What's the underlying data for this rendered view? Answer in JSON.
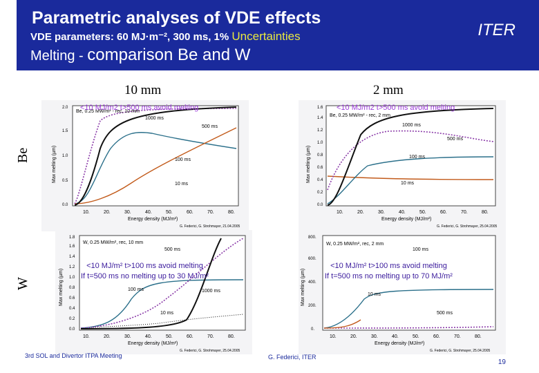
{
  "header": {
    "title": "Parametric analyses of VDE effects",
    "subtitle_main": "VDE parameters: 60 MJ·m⁻², 300 ms, 1%",
    "subtitle_unc": "Uncertainties",
    "subtitle2_small": "Melting -",
    "subtitle2_big": "comparison Be and W",
    "logo": "ITER"
  },
  "columns": [
    "10 mm",
    "2 mm"
  ],
  "rows": [
    "Be",
    "W"
  ],
  "panels": [
    {
      "legend": "Be, 0.25 MW/m² - rec, 10 mm",
      "note": "<10 MJ/m2 t>500 ms avoid melting",
      "credit": "G. Federici, G. Strohmayer, 21.04.2005",
      "xlabel": "Energy density (MJ/m²)",
      "ylabel": "Max melting (µm)",
      "ticks_x": [
        "10.",
        "20.",
        "30.",
        "40.",
        "50.",
        "60.",
        "70.",
        "80."
      ],
      "ticks_y": [
        "0.0",
        "0.5",
        "1.0",
        "1.5",
        "2.0"
      ],
      "curve_labels": [
        "1000 ms",
        "500 ms",
        "100 ms",
        "10 ms"
      ]
    },
    {
      "legend": "Be, 0.25 MW/m² - rec, 2 mm",
      "note": "<10 MJ/m2 t>500 ms avoid melting",
      "credit": "G. Federici, G. Strohmayer, 25.04.2005",
      "xlabel": "Energy density (MJ/m²)",
      "ylabel": "Max melting (µm)",
      "ticks_x": [
        "10.",
        "20.",
        "30.",
        "40.",
        "50.",
        "60.",
        "70.",
        "80."
      ],
      "ticks_y": [
        "0.0",
        "0.2",
        "0.4",
        "0.6",
        "0.8",
        "1.0",
        "1.2",
        "1.4",
        "1.6"
      ],
      "curve_labels": [
        "1000 ms",
        "500 ms",
        "100 ms",
        "10 ms"
      ]
    },
    {
      "legend": "W, 0.25 MW/m², rec, 10 mm",
      "note_line1": "<10 MJ/m² t>100 ms avoid melting",
      "note_line2": "If t=500 ms no melting up to 30 MJ/m²",
      "credit": "G. Federici, G. Strohmayer, 25.04.2005",
      "xlabel": "Energy density (MJ/m²)",
      "ylabel": "Max melting (µm)",
      "ticks_x": [
        "10.",
        "20.",
        "30.",
        "40.",
        "50.",
        "60.",
        "70.",
        "80."
      ],
      "ticks_y": [
        "0.0",
        "0.2",
        "0.4",
        "0.6",
        "0.8",
        "1.0",
        "1.2",
        "1.4",
        "1.6",
        "1.8"
      ],
      "curve_labels": [
        "500 ms",
        "100 ms",
        "1000 ms",
        "10 ms"
      ]
    },
    {
      "legend": "W, 0.25 MW/m², rec, 2 mm",
      "note_line1": "<10 MJ/m² t>100 ms avoid melting",
      "note_line2": "If t=500 ms no melting up to 70 MJ/m²",
      "credit": "G. Federici, G. Strohmayer, 25.04.2005",
      "xlabel": "Energy density (MJ/m²)",
      "ylabel": "Max melting (µm)",
      "ticks_x": [
        "10.",
        "20.",
        "30.",
        "40.",
        "50.",
        "60.",
        "70.",
        "80."
      ],
      "ticks_y": [
        "0.",
        "200.",
        "400.",
        "600.",
        "800."
      ],
      "curve_labels": [
        "100 ms",
        "10 ms",
        "500 ms"
      ]
    }
  ],
  "footer": {
    "meeting": "3rd SOL and Divertor ITPA Meeting",
    "author": "G. Federici, ITER",
    "page": "19"
  },
  "colors": {
    "header_bg": "#1a2a9c",
    "curve_1000": "#111111",
    "curve_500": "#8a3aa8",
    "curve_100": "#2a6f8a",
    "curve_10": "#c25a1a"
  }
}
